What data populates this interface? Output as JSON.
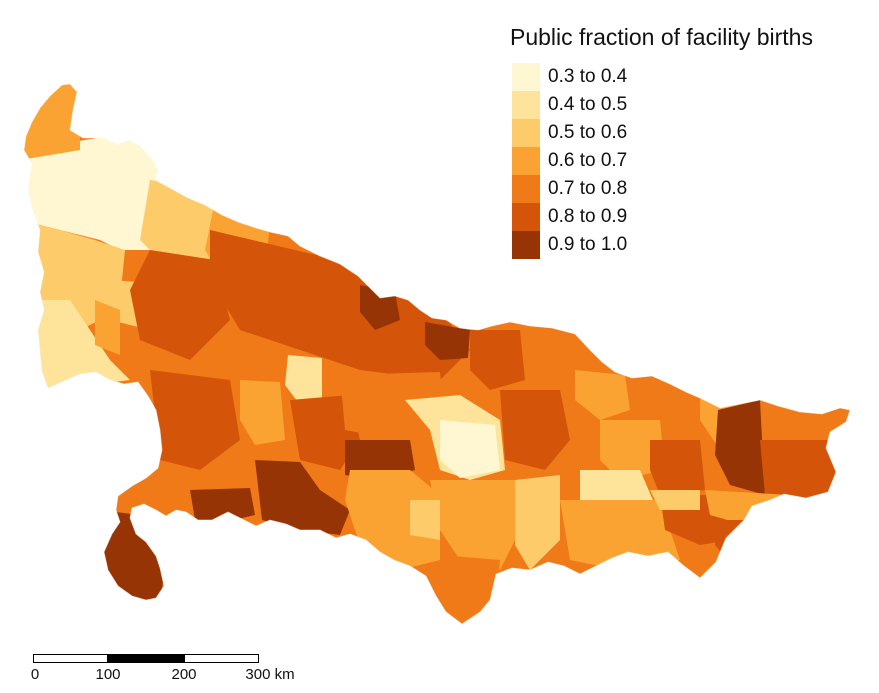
{
  "map": {
    "legend": {
      "title": "Public fraction of facility births",
      "classes": [
        {
          "label": "0.3 to 0.4",
          "color": "#fff7d2"
        },
        {
          "label": "0.4 to 0.5",
          "color": "#fee39a"
        },
        {
          "label": "0.5 to 0.6",
          "color": "#fdcb6a"
        },
        {
          "label": "0.6 to 0.7",
          "color": "#faa332"
        },
        {
          "label": "0.7 to 0.8",
          "color": "#f07a18"
        },
        {
          "label": "0.8 to 0.9",
          "color": "#d4540a"
        },
        {
          "label": "0.9 to 1.0",
          "color": "#973406"
        }
      ]
    },
    "scalebar": {
      "ticks": [
        "0",
        "100",
        "200",
        "300 km"
      ]
    }
  }
}
